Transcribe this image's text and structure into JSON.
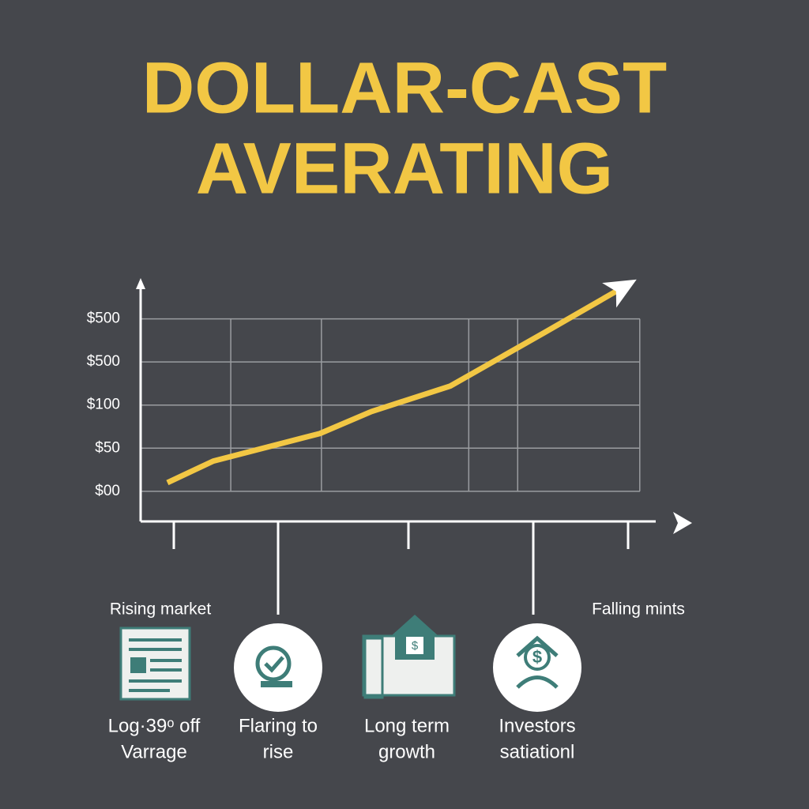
{
  "chart_data": {
    "type": "line",
    "title_lines": [
      "DOLLAR-CAST",
      "AVERATING"
    ],
    "x": [
      0.52,
      1.41,
      3.48,
      4.48,
      6.01,
      7.85,
      9.23
    ],
    "values": [
      0.2,
      0.7,
      1.34,
      1.85,
      2.44,
      3.69,
      4.64
    ],
    "color": "#f2c744",
    "xlim": [
      0,
      10
    ],
    "xticks": [
      1.75,
      3.51,
      6.37,
      7.32,
      9.69
    ],
    "ylim": [
      -0.7,
      4.8
    ],
    "yticks": [
      {
        "value": 0,
        "label": "$00"
      },
      {
        "value": 1,
        "label": "$50"
      },
      {
        "value": 2,
        "label": "$100"
      },
      {
        "value": 3,
        "label": "$500"
      },
      {
        "value": 4,
        "label": "$500"
      }
    ],
    "grid": true,
    "annotations": [
      "Rising market",
      "Falling mints"
    ],
    "items": [
      {
        "lines": [
          "Log·39ᵒ off",
          "Varrage"
        ]
      },
      {
        "lines": [
          "Flaring to",
          "rise"
        ]
      },
      {
        "lines": [
          "Long term",
          "growth"
        ]
      },
      {
        "lines": [
          "Investors",
          "satiationl"
        ]
      }
    ]
  }
}
